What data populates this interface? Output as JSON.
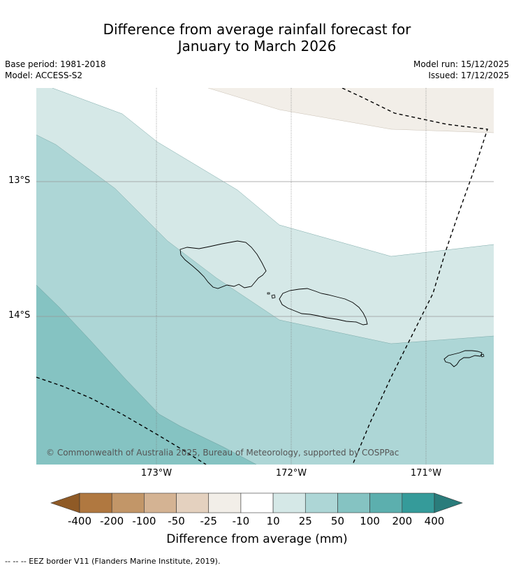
{
  "title": {
    "line1": "Difference from average rainfall forecast for",
    "line2": "January to March 2026"
  },
  "meta": {
    "base_period": "Base period: 1981-2018",
    "model": "Model: ACCESS-S2",
    "model_run": "Model run: 15/12/2025",
    "issued": "Issued: 17/12/2025"
  },
  "map": {
    "lat_labels": [
      "13°S",
      "14°S"
    ],
    "lon_labels": [
      "173°W",
      "172°W",
      "171°W"
    ],
    "copyright": "© Commonwealth of Australia 2025, Bureau of Meteorology, supported by COSPPac",
    "category_colors": {
      "10_to_25": "#d5e8e7",
      "25_to_50": "#add6d6",
      "50_to_100": "#85c3c2",
      "neg25_to_neg10": "#f2eee8"
    }
  },
  "colorbar": {
    "title": "Difference from average (mm)",
    "ticks": [
      "-400",
      "-200",
      "-100",
      "-50",
      "-25",
      "-10",
      "10",
      "25",
      "50",
      "100",
      "200",
      "400"
    ],
    "colors": [
      "#8f5a26",
      "#b07840",
      "#c29668",
      "#d4b393",
      "#e4d1bf",
      "#f2eee8",
      "#ffffff",
      "#d5e8e7",
      "#add6d6",
      "#85c3c2",
      "#5cafae",
      "#359b9a",
      "#2a7c7b"
    ]
  },
  "footnote": "-- -- -- EEZ border V11 (Flanders Marine Institute, 2019)."
}
